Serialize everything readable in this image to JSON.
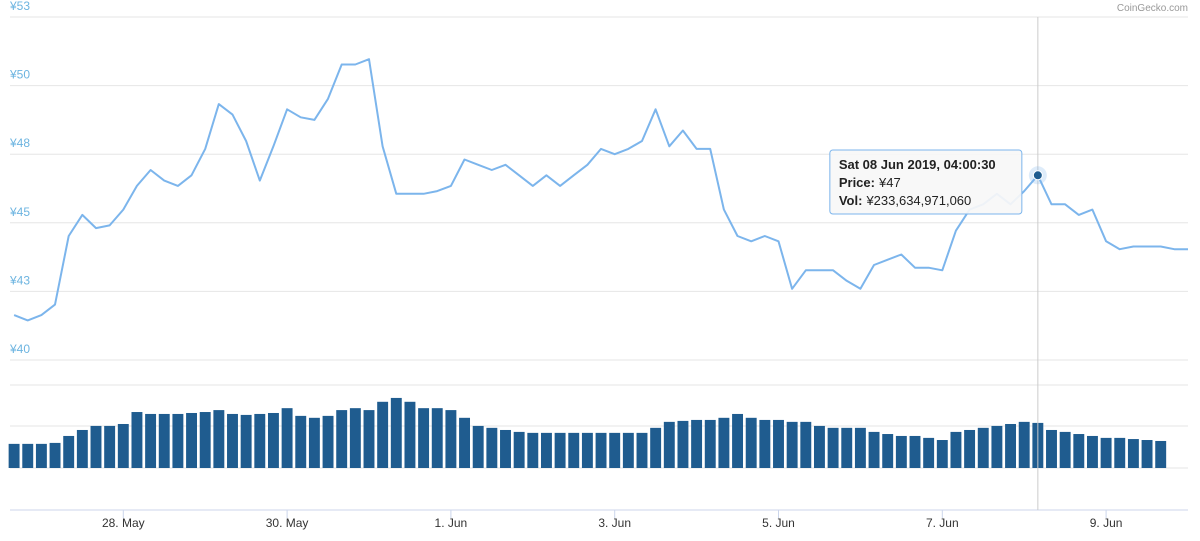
{
  "chart_data": {
    "type": "line",
    "source": "CoinGecko.com",
    "x": [
      "2019-05-26T16:00",
      "2019-05-26T20:00",
      "2019-05-27T00:00",
      "2019-05-27T04:00",
      "2019-05-27T08:00",
      "2019-05-27T12:00",
      "2019-05-27T16:00",
      "2019-05-27T20:00",
      "2019-05-28T00:00",
      "2019-05-28T04:00",
      "2019-05-28T08:00",
      "2019-05-28T12:00",
      "2019-05-28T16:00",
      "2019-05-28T20:00",
      "2019-05-29T00:00",
      "2019-05-29T04:00",
      "2019-05-29T08:00",
      "2019-05-29T12:00",
      "2019-05-29T16:00",
      "2019-05-29T20:00",
      "2019-05-30T00:00",
      "2019-05-30T04:00",
      "2019-05-30T08:00",
      "2019-05-30T12:00",
      "2019-05-30T16:00",
      "2019-05-30T20:00",
      "2019-05-31T00:00",
      "2019-05-31T04:00",
      "2019-05-31T08:00",
      "2019-05-31T12:00",
      "2019-05-31T16:00",
      "2019-05-31T20:00",
      "2019-06-01T00:00",
      "2019-06-01T04:00",
      "2019-06-01T08:00",
      "2019-06-01T12:00",
      "2019-06-01T16:00",
      "2019-06-01T20:00",
      "2019-06-02T00:00",
      "2019-06-02T04:00",
      "2019-06-02T08:00",
      "2019-06-02T12:00",
      "2019-06-02T16:00",
      "2019-06-02T20:00",
      "2019-06-03T00:00",
      "2019-06-03T04:00",
      "2019-06-03T08:00",
      "2019-06-03T12:00",
      "2019-06-03T16:00",
      "2019-06-03T20:00",
      "2019-06-04T00:00",
      "2019-06-04T04:00",
      "2019-06-04T08:00",
      "2019-06-04T12:00",
      "2019-06-04T16:00",
      "2019-06-04T20:00",
      "2019-06-05T00:00",
      "2019-06-05T04:00",
      "2019-06-05T08:00",
      "2019-06-05T12:00",
      "2019-06-05T16:00",
      "2019-06-05T20:00",
      "2019-06-06T00:00",
      "2019-06-06T04:00",
      "2019-06-06T08:00",
      "2019-06-06T12:00",
      "2019-06-06T16:00",
      "2019-06-06T20:00",
      "2019-06-07T00:00",
      "2019-06-07T04:00",
      "2019-06-07T08:00",
      "2019-06-07T12:00",
      "2019-06-07T16:00",
      "2019-06-07T20:00",
      "2019-06-08T00:00",
      "2019-06-08T04:00",
      "2019-06-08T08:00",
      "2019-06-08T12:00",
      "2019-06-08T16:00",
      "2019-06-08T20:00",
      "2019-06-09T00:00",
      "2019-06-09T04:00",
      "2019-06-09T08:00",
      "2019-06-09T12:00",
      "2019-06-09T16:00",
      "2019-06-09T20:00",
      "2019-06-10T00:00"
    ],
    "series": [
      {
        "name": "Price",
        "color": "#7cb5ec",
        "values": [
          41.7,
          41.5,
          41.7,
          42.1,
          44.7,
          45.5,
          45.0,
          45.1,
          45.7,
          46.6,
          47.2,
          46.8,
          46.6,
          47.0,
          48.0,
          49.7,
          49.3,
          48.3,
          46.8,
          48.1,
          49.5,
          49.2,
          49.1,
          49.9,
          51.2,
          51.2,
          51.4,
          48.1,
          46.3,
          46.3,
          46.3,
          46.4,
          46.6,
          47.6,
          47.4,
          47.2,
          47.4,
          47.0,
          46.6,
          47.0,
          46.6,
          47.0,
          47.4,
          48.0,
          47.8,
          48.0,
          48.3,
          49.5,
          48.1,
          48.7,
          48.0,
          48.0,
          45.7,
          44.7,
          44.5,
          44.7,
          44.5,
          42.7,
          43.4,
          43.4,
          43.4,
          43.0,
          42.7,
          43.6,
          43.8,
          44.0,
          43.5,
          43.5,
          43.4,
          44.9,
          45.7,
          45.9,
          46.3,
          45.9,
          46.4,
          47,
          45.9,
          45.9,
          45.5,
          45.7,
          44.5,
          44.2,
          44.3,
          44.3,
          44.3,
          44.2,
          44.2
        ]
      },
      {
        "name": "Vol",
        "color": "#1f5c8f",
        "axis": "y2",
        "values": [
          125000000000.0,
          125000000000.0,
          125000000000.0,
          130000000000.0,
          166000000000.0,
          197000000000.0,
          218000000000.0,
          218000000000.0,
          228000000000.0,
          290000000000.0,
          280000000000.0,
          280000000000.0,
          280000000000.0,
          285000000000.0,
          290000000000.0,
          300000000000.0,
          280000000000.0,
          275000000000.0,
          280000000000.0,
          285000000000.0,
          310000000000.0,
          270000000000.0,
          260000000000.0,
          270000000000.0,
          300000000000.0,
          310000000000.0,
          300000000000.0,
          343000000000.0,
          363000000000.0,
          343000000000.0,
          310000000000.0,
          310000000000.0,
          300000000000.0,
          260000000000.0,
          218000000000.0,
          208000000000.0,
          197000000000.0,
          187000000000.0,
          182000000000.0,
          182000000000.0,
          182000000000.0,
          182000000000.0,
          182000000000.0,
          182000000000.0,
          182000000000.0,
          182000000000.0,
          182000000000.0,
          208000000000.0,
          239000000000.0,
          244000000000.0,
          249000000000.0,
          249000000000.0,
          260000000000.0,
          280000000000.0,
          260000000000.0,
          249000000000.0,
          249000000000.0,
          239000000000.0,
          239000000000.0,
          218000000000.0,
          208000000000.0,
          208000000000.0,
          208000000000.0,
          187000000000.0,
          176000000000.0,
          166000000000.0,
          166000000000.0,
          156000000000.0,
          145000000000.0,
          187000000000.0,
          197000000000.0,
          208000000000.0,
          218000000000.0,
          228000000000.0,
          239000000000.0,
          233634971060,
          197000000000.0,
          187000000000.0,
          176000000000.0,
          166000000000.0,
          156000000000.0,
          156000000000.0,
          150000000000.0,
          145000000000.0,
          140000000000.0,
          null,
          null
        ]
      }
    ],
    "xlim": [
      "2019-05-26T14:48",
      "2019-06-10T00:00"
    ],
    "xticks": [
      {
        "value": "2019-05-28T00:00",
        "label": "28. May"
      },
      {
        "value": "2019-05-30T00:00",
        "label": "30. May"
      },
      {
        "value": "2019-06-01T00:00",
        "label": "1. Jun"
      },
      {
        "value": "2019-06-03T00:00",
        "label": "3. Jun"
      },
      {
        "value": "2019-06-05T00:00",
        "label": "5. Jun"
      },
      {
        "value": "2019-06-07T00:00",
        "label": "7. Jun"
      },
      {
        "value": "2019-06-09T00:00",
        "label": "9. Jun"
      }
    ],
    "ylim": [
      40,
      53
    ],
    "yticks": [
      {
        "value": 40,
        "label": "¥40"
      },
      {
        "value": 42.6,
        "label": "¥43"
      },
      {
        "value": 45.2,
        "label": "¥45"
      },
      {
        "value": 47.8,
        "label": "¥48"
      },
      {
        "value": 50.4,
        "label": "¥50"
      },
      {
        "value": 53,
        "label": "¥53"
      }
    ],
    "y2lim": [
      0,
      430000000000.0
    ],
    "grid": true,
    "tooltip": {
      "x": "2019-06-08T04:00",
      "time": "Sat 08 Jun 2019, 04:00:30",
      "price_title": "Price:",
      "price": 47,
      "price_label": "¥47",
      "vol_title": "Vol:",
      "vol": 233634971060,
      "vol_label": "¥233,634,971,060"
    }
  }
}
